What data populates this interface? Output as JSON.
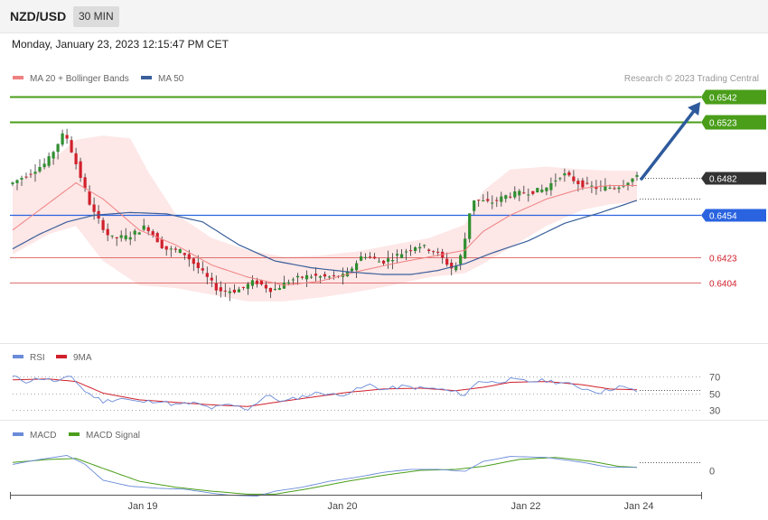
{
  "header": {
    "symbol": "NZD/USD",
    "timeframe": "30 MIN"
  },
  "datetime": "Monday, January 23, 2023 12:15:47 PM CET",
  "credit": "Research © 2023 Trading Central",
  "colors": {
    "candle_up": "#2f8f2f",
    "candle_down": "#d0202b",
    "ma20": "#f08080",
    "bollinger_fill": "#fde1e1",
    "ma50": "#3a5f9a",
    "resistance": "#4a9e1a",
    "pivot": "#2a63e0",
    "support": "#e07070",
    "current": "#333333",
    "arrow": "#2e5a9c",
    "rsi": "#6a8bd8",
    "rsi_ma": "#d0202b",
    "macd": "#6a8bd8",
    "macd_signal": "#4a9e1a"
  },
  "chart_data": [
    {
      "type": "candlestick",
      "legend": [
        {
          "label": "MA 20 + Bollinger Bands",
          "color": "#f08080"
        },
        {
          "label": "MA 50",
          "color": "#3a5f9a"
        }
      ],
      "x_ticks": [
        "Jan 19",
        "Jan 20",
        "Jan 22",
        "Jan 24"
      ],
      "ylim": [
        0.6392,
        0.6555
      ],
      "levels": [
        {
          "value": 0.6542,
          "label": "0.6542",
          "kind": "resistance"
        },
        {
          "value": 0.6523,
          "label": "0.6523",
          "kind": "resistance"
        },
        {
          "value": 0.6482,
          "label": "0.6482",
          "kind": "current"
        },
        {
          "value": 0.6454,
          "label": "0.6454",
          "kind": "pivot"
        },
        {
          "value": 0.6423,
          "label": "0.6423",
          "kind": "support"
        },
        {
          "value": 0.6404,
          "label": "0.6404",
          "kind": "support"
        }
      ],
      "price_path": [
        {
          "t": 0,
          "p": 0.6477
        },
        {
          "t": 4,
          "p": 0.6485
        },
        {
          "t": 8,
          "p": 0.6493
        },
        {
          "t": 12,
          "p": 0.6516
        },
        {
          "t": 14,
          "p": 0.6497
        },
        {
          "t": 18,
          "p": 0.6458
        },
        {
          "t": 22,
          "p": 0.6437
        },
        {
          "t": 26,
          "p": 0.6438
        },
        {
          "t": 30,
          "p": 0.6446
        },
        {
          "t": 34,
          "p": 0.6429
        },
        {
          "t": 38,
          "p": 0.6427
        },
        {
          "t": 42,
          "p": 0.6413
        },
        {
          "t": 46,
          "p": 0.6398
        },
        {
          "t": 50,
          "p": 0.6398
        },
        {
          "t": 54,
          "p": 0.6405
        },
        {
          "t": 58,
          "p": 0.6398
        },
        {
          "t": 62,
          "p": 0.6406
        },
        {
          "t": 66,
          "p": 0.6409
        },
        {
          "t": 70,
          "p": 0.6408
        },
        {
          "t": 74,
          "p": 0.6409
        },
        {
          "t": 78,
          "p": 0.6425
        },
        {
          "t": 82,
          "p": 0.6419
        },
        {
          "t": 86,
          "p": 0.6425
        },
        {
          "t": 90,
          "p": 0.6432
        },
        {
          "t": 94,
          "p": 0.6427
        },
        {
          "t": 98,
          "p": 0.6413
        },
        {
          "t": 100,
          "p": 0.6427
        },
        {
          "t": 102,
          "p": 0.6466
        },
        {
          "t": 106,
          "p": 0.6463
        },
        {
          "t": 110,
          "p": 0.6469
        },
        {
          "t": 114,
          "p": 0.6471
        },
        {
          "t": 118,
          "p": 0.6473
        },
        {
          "t": 122,
          "p": 0.6485
        },
        {
          "t": 126,
          "p": 0.6477
        },
        {
          "t": 130,
          "p": 0.6474
        },
        {
          "t": 134,
          "p": 0.6475
        },
        {
          "t": 138,
          "p": 0.6482
        }
      ],
      "ma20_path": [
        {
          "t": 0,
          "p": 0.6443
        },
        {
          "t": 8,
          "p": 0.6463
        },
        {
          "t": 14,
          "p": 0.6478
        },
        {
          "t": 20,
          "p": 0.6466
        },
        {
          "t": 28,
          "p": 0.6443
        },
        {
          "t": 36,
          "p": 0.6432
        },
        {
          "t": 44,
          "p": 0.6417
        },
        {
          "t": 52,
          "p": 0.6408
        },
        {
          "t": 60,
          "p": 0.6402
        },
        {
          "t": 68,
          "p": 0.6405
        },
        {
          "t": 76,
          "p": 0.6412
        },
        {
          "t": 84,
          "p": 0.6418
        },
        {
          "t": 92,
          "p": 0.6423
        },
        {
          "t": 100,
          "p": 0.6428
        },
        {
          "t": 104,
          "p": 0.6442
        },
        {
          "t": 110,
          "p": 0.6454
        },
        {
          "t": 118,
          "p": 0.6466
        },
        {
          "t": 126,
          "p": 0.6474
        },
        {
          "t": 132,
          "p": 0.6476
        },
        {
          "t": 138,
          "p": 0.6476
        }
      ],
      "band_upper": [
        {
          "t": 0,
          "p": 0.6475
        },
        {
          "t": 8,
          "p": 0.6493
        },
        {
          "t": 14,
          "p": 0.651
        },
        {
          "t": 20,
          "p": 0.6513
        },
        {
          "t": 26,
          "p": 0.6511
        },
        {
          "t": 30,
          "p": 0.6486
        },
        {
          "t": 36,
          "p": 0.6455
        },
        {
          "t": 44,
          "p": 0.6437
        },
        {
          "t": 52,
          "p": 0.6428
        },
        {
          "t": 60,
          "p": 0.6423
        },
        {
          "t": 68,
          "p": 0.6424
        },
        {
          "t": 76,
          "p": 0.6427
        },
        {
          "t": 84,
          "p": 0.6432
        },
        {
          "t": 92,
          "p": 0.6437
        },
        {
          "t": 100,
          "p": 0.6447
        },
        {
          "t": 104,
          "p": 0.6472
        },
        {
          "t": 110,
          "p": 0.6488
        },
        {
          "t": 118,
          "p": 0.649
        },
        {
          "t": 126,
          "p": 0.6488
        },
        {
          "t": 132,
          "p": 0.6487
        },
        {
          "t": 138,
          "p": 0.6487
        }
      ],
      "band_lower": [
        {
          "t": 0,
          "p": 0.6425
        },
        {
          "t": 8,
          "p": 0.644
        },
        {
          "t": 14,
          "p": 0.6446
        },
        {
          "t": 20,
          "p": 0.642
        },
        {
          "t": 28,
          "p": 0.6402
        },
        {
          "t": 36,
          "p": 0.64
        },
        {
          "t": 44,
          "p": 0.6395
        },
        {
          "t": 52,
          "p": 0.639
        },
        {
          "t": 60,
          "p": 0.639
        },
        {
          "t": 68,
          "p": 0.6393
        },
        {
          "t": 76,
          "p": 0.6397
        },
        {
          "t": 84,
          "p": 0.6402
        },
        {
          "t": 92,
          "p": 0.6408
        },
        {
          "t": 100,
          "p": 0.6411
        },
        {
          "t": 104,
          "p": 0.6418
        },
        {
          "t": 110,
          "p": 0.643
        },
        {
          "t": 118,
          "p": 0.6446
        },
        {
          "t": 126,
          "p": 0.6458
        },
        {
          "t": 132,
          "p": 0.6462
        },
        {
          "t": 138,
          "p": 0.6464
        }
      ],
      "ma50_path": [
        {
          "t": 0,
          "p": 0.6429
        },
        {
          "t": 6,
          "p": 0.644
        },
        {
          "t": 12,
          "p": 0.6449
        },
        {
          "t": 18,
          "p": 0.6454
        },
        {
          "t": 26,
          "p": 0.6456
        },
        {
          "t": 34,
          "p": 0.6455
        },
        {
          "t": 42,
          "p": 0.6449
        },
        {
          "t": 50,
          "p": 0.6432
        },
        {
          "t": 58,
          "p": 0.642
        },
        {
          "t": 66,
          "p": 0.6415
        },
        {
          "t": 74,
          "p": 0.6412
        },
        {
          "t": 82,
          "p": 0.641
        },
        {
          "t": 88,
          "p": 0.641
        },
        {
          "t": 94,
          "p": 0.6413
        },
        {
          "t": 100,
          "p": 0.6418
        },
        {
          "t": 106,
          "p": 0.6426
        },
        {
          "t": 114,
          "p": 0.6435
        },
        {
          "t": 122,
          "p": 0.6448
        },
        {
          "t": 130,
          "p": 0.6456
        },
        {
          "t": 138,
          "p": 0.6465
        }
      ],
      "forecast": {
        "from": {
          "t": 139,
          "p": 0.6481
        },
        "to": {
          "t": 152,
          "p": 0.6538
        }
      }
    },
    {
      "type": "line",
      "legend": [
        {
          "label": "RSI",
          "color": "#6a8bd8"
        },
        {
          "label": "9MA",
          "color": "#d0202b"
        }
      ],
      "ylim": [
        25,
        80
      ],
      "y_ticks": [
        70,
        50,
        30
      ],
      "rsi": [
        {
          "t": 0,
          "p": 70
        },
        {
          "t": 3,
          "p": 64
        },
        {
          "t": 6,
          "p": 68
        },
        {
          "t": 10,
          "p": 64
        },
        {
          "t": 13,
          "p": 70
        },
        {
          "t": 16,
          "p": 52
        },
        {
          "t": 20,
          "p": 40
        },
        {
          "t": 24,
          "p": 44
        },
        {
          "t": 28,
          "p": 39
        },
        {
          "t": 32,
          "p": 41
        },
        {
          "t": 36,
          "p": 36
        },
        {
          "t": 40,
          "p": 38
        },
        {
          "t": 44,
          "p": 32
        },
        {
          "t": 48,
          "p": 36
        },
        {
          "t": 52,
          "p": 31
        },
        {
          "t": 56,
          "p": 47
        },
        {
          "t": 60,
          "p": 40
        },
        {
          "t": 64,
          "p": 46
        },
        {
          "t": 68,
          "p": 51
        },
        {
          "t": 72,
          "p": 47
        },
        {
          "t": 76,
          "p": 54
        },
        {
          "t": 79,
          "p": 60
        },
        {
          "t": 82,
          "p": 54
        },
        {
          "t": 86,
          "p": 58
        },
        {
          "t": 90,
          "p": 56
        },
        {
          "t": 94,
          "p": 55
        },
        {
          "t": 98,
          "p": 51
        },
        {
          "t": 100,
          "p": 48
        },
        {
          "t": 103,
          "p": 65
        },
        {
          "t": 106,
          "p": 63
        },
        {
          "t": 110,
          "p": 66
        },
        {
          "t": 114,
          "p": 64
        },
        {
          "t": 118,
          "p": 65
        },
        {
          "t": 122,
          "p": 62
        },
        {
          "t": 126,
          "p": 56
        },
        {
          "t": 130,
          "p": 51
        },
        {
          "t": 134,
          "p": 58
        },
        {
          "t": 138,
          "p": 52
        }
      ],
      "rsi_ma": [
        {
          "t": 0,
          "p": 66
        },
        {
          "t": 8,
          "p": 67
        },
        {
          "t": 14,
          "p": 64
        },
        {
          "t": 20,
          "p": 50
        },
        {
          "t": 28,
          "p": 42
        },
        {
          "t": 36,
          "p": 39
        },
        {
          "t": 44,
          "p": 36
        },
        {
          "t": 52,
          "p": 34
        },
        {
          "t": 58,
          "p": 39
        },
        {
          "t": 66,
          "p": 45
        },
        {
          "t": 74,
          "p": 51
        },
        {
          "t": 82,
          "p": 55
        },
        {
          "t": 90,
          "p": 56
        },
        {
          "t": 98,
          "p": 53
        },
        {
          "t": 104,
          "p": 57
        },
        {
          "t": 110,
          "p": 63
        },
        {
          "t": 118,
          "p": 64
        },
        {
          "t": 126,
          "p": 60
        },
        {
          "t": 132,
          "p": 55
        },
        {
          "t": 138,
          "p": 54
        }
      ]
    },
    {
      "type": "line",
      "legend": [
        {
          "label": "MACD",
          "color": "#6a8bd8"
        },
        {
          "label": "MACD Signal",
          "color": "#4a9e1a"
        }
      ],
      "ylim": [
        -0.0032,
        0.0022
      ],
      "y_ticks": [
        0
      ],
      "macd": [
        {
          "t": 0,
          "p": 0.0006
        },
        {
          "t": 6,
          "p": 0.0011
        },
        {
          "t": 12,
          "p": 0.0015
        },
        {
          "t": 16,
          "p": 0.0006
        },
        {
          "t": 20,
          "p": -0.001
        },
        {
          "t": 26,
          "p": -0.0016
        },
        {
          "t": 32,
          "p": -0.0018
        },
        {
          "t": 38,
          "p": -0.0019
        },
        {
          "t": 44,
          "p": -0.0023
        },
        {
          "t": 48,
          "p": -0.0025
        },
        {
          "t": 54,
          "p": -0.0026
        },
        {
          "t": 58,
          "p": -0.0021
        },
        {
          "t": 64,
          "p": -0.0017
        },
        {
          "t": 70,
          "p": -0.0011
        },
        {
          "t": 76,
          "p": -0.0007
        },
        {
          "t": 82,
          "p": -0.0002
        },
        {
          "t": 88,
          "p": 0.0001
        },
        {
          "t": 94,
          "p": 0.0001
        },
        {
          "t": 100,
          "p": -0.0001
        },
        {
          "t": 104,
          "p": 0.0009
        },
        {
          "t": 110,
          "p": 0.0014
        },
        {
          "t": 118,
          "p": 0.0013
        },
        {
          "t": 126,
          "p": 0.0008
        },
        {
          "t": 132,
          "p": 0.0003
        },
        {
          "t": 138,
          "p": 0.0003
        }
      ],
      "macd_signal": [
        {
          "t": 0,
          "p": 0.0008
        },
        {
          "t": 8,
          "p": 0.0011
        },
        {
          "t": 14,
          "p": 0.0012
        },
        {
          "t": 20,
          "p": 0.0002
        },
        {
          "t": 28,
          "p": -0.0011
        },
        {
          "t": 36,
          "p": -0.0017
        },
        {
          "t": 44,
          "p": -0.0021
        },
        {
          "t": 52,
          "p": -0.0024
        },
        {
          "t": 58,
          "p": -0.0024
        },
        {
          "t": 66,
          "p": -0.0018
        },
        {
          "t": 74,
          "p": -0.0011
        },
        {
          "t": 82,
          "p": -0.0005
        },
        {
          "t": 90,
          "p": 0.0
        },
        {
          "t": 98,
          "p": 0.0001
        },
        {
          "t": 104,
          "p": 0.0004
        },
        {
          "t": 112,
          "p": 0.0011
        },
        {
          "t": 120,
          "p": 0.0013
        },
        {
          "t": 128,
          "p": 0.0009
        },
        {
          "t": 134,
          "p": 0.0004
        },
        {
          "t": 138,
          "p": 0.0003
        }
      ]
    }
  ]
}
